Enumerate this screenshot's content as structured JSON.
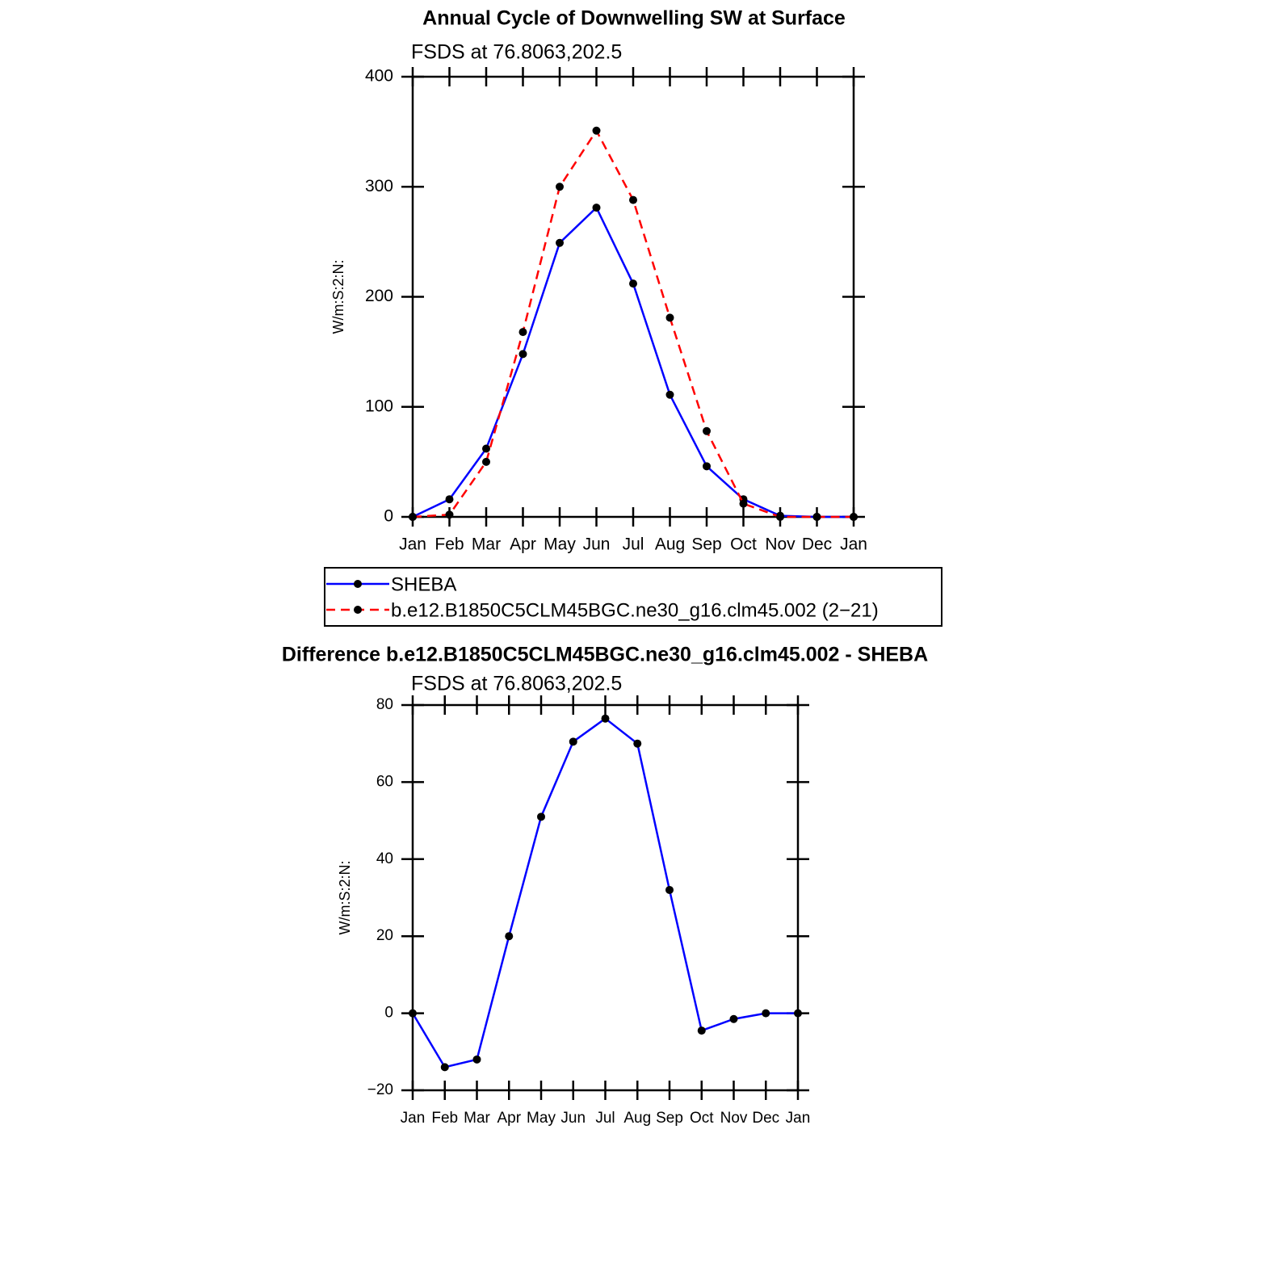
{
  "chart_data": [
    {
      "type": "line",
      "title": "Annual Cycle of Downwelling SW at Surface",
      "subtitle": "FSDS at 76.8063,202.5",
      "y_label": "W/m:S:2:N:",
      "categories": [
        "Jan",
        "Feb",
        "Mar",
        "Apr",
        "May",
        "Jun",
        "Jul",
        "Aug",
        "Sep",
        "Oct",
        "Nov",
        "Dec",
        "Jan"
      ],
      "series": [
        {
          "name": "SHEBA",
          "color": "#0000ff",
          "style": "solid",
          "values": [
            0,
            16,
            62,
            148,
            249,
            281,
            212,
            111,
            46,
            16,
            1,
            0,
            0
          ]
        },
        {
          "name": "b.e12.B1850C5CLM45BGC.ne30_g16.clm45.002 (2−21)",
          "color": "#ff0000",
          "style": "dashed",
          "values": [
            0,
            2,
            50,
            168,
            300,
            351,
            288,
            181,
            78,
            12,
            0,
            0,
            0
          ]
        }
      ],
      "ylim": [
        0,
        400
      ],
      "yticks": [
        0,
        100,
        200,
        300,
        400
      ],
      "grid": false
    },
    {
      "type": "line",
      "title": "Difference b.e12.B1850C5CLM45BGC.ne30_g16.clm45.002 - SHEBA",
      "subtitle": "FSDS at 76.8063,202.5",
      "y_label": "W/m:S:2:N:",
      "categories": [
        "Jan",
        "Feb",
        "Mar",
        "Apr",
        "May",
        "Jun",
        "Jul",
        "Aug",
        "Sep",
        "Oct",
        "Nov",
        "Dec",
        "Jan"
      ],
      "series": [
        {
          "color": "#0000ff",
          "style": "solid",
          "values": [
            0,
            -14,
            -12,
            20,
            51,
            70.5,
            76.5,
            70,
            32,
            -4.5,
            -1.5,
            0,
            0
          ]
        }
      ],
      "ylim": [
        -20,
        80
      ],
      "yticks": [
        {
          "value": -20,
          "label": "−20"
        },
        0,
        20,
        40,
        60,
        80
      ],
      "grid": false
    }
  ]
}
